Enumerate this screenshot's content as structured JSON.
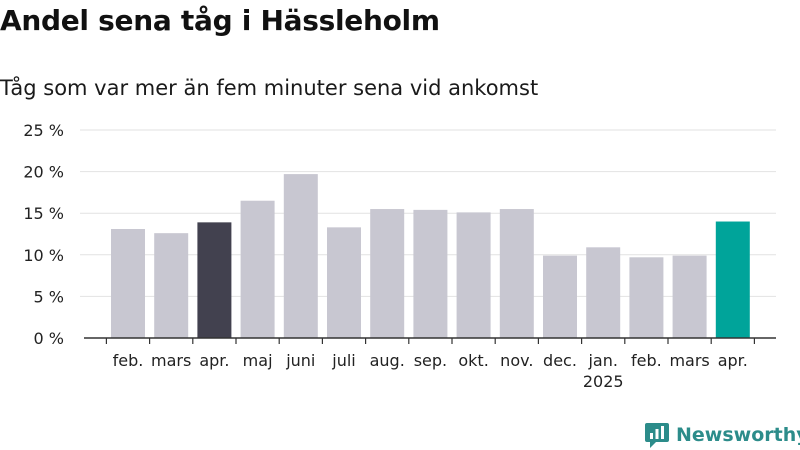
{
  "title": "Andel sena tåg i Hässleholm",
  "subtitle": "Tåg som var mer än fem minuter sena vid ankomst",
  "brand": {
    "name": "Newsworthy"
  },
  "colors": {
    "bar_default": "#c8c7d1",
    "bar_dark": "#42414f",
    "bar_highlight": "#00a49a",
    "grid": "#e2e2e2",
    "axis": "#333333",
    "brand": "#2c8c8a"
  },
  "chart_data": {
    "type": "bar",
    "title": "Andel sena tåg i Hässleholm",
    "subtitle": "Tåg som var mer än fem minuter sena vid ankomst",
    "categories": [
      "feb.",
      "mars",
      "apr.",
      "maj",
      "juni",
      "juli",
      "aug.",
      "sep.",
      "okt.",
      "nov.",
      "dec.",
      "jan.",
      "feb.",
      "mars",
      "apr."
    ],
    "year_labels": [
      {
        "index": 11,
        "label": "2025"
      }
    ],
    "values": [
      13.1,
      12.6,
      13.9,
      16.5,
      19.7,
      13.3,
      15.5,
      15.4,
      15.1,
      15.5,
      9.9,
      10.9,
      9.7,
      9.9,
      14.0
    ],
    "bar_colors": [
      "default",
      "default",
      "dark",
      "default",
      "default",
      "default",
      "default",
      "default",
      "default",
      "default",
      "default",
      "default",
      "default",
      "default",
      "highlight"
    ],
    "y_ticks": [
      "0 %",
      "5 %",
      "10 %",
      "15 %",
      "20 %",
      "25 %"
    ],
    "y_tick_values": [
      0,
      5,
      10,
      15,
      20,
      25
    ],
    "ylim": [
      0,
      25
    ],
    "grid": true,
    "legend": "none"
  }
}
